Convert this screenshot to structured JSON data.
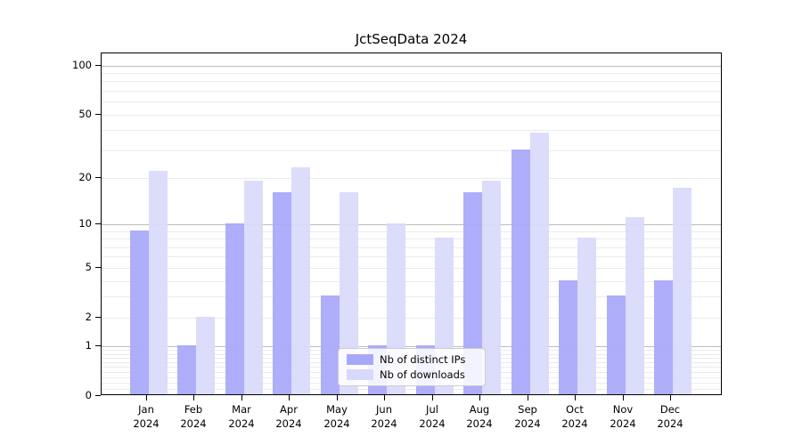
{
  "title": "JctSeqData 2024",
  "colors": {
    "bar_distinct_ips": "#a8a8fa",
    "bar_downloads": "#d9d9fb",
    "grid_major": "#bdbdbd",
    "grid_minor": "#ebebeb",
    "axis": "#000000"
  },
  "legend": {
    "items": [
      {
        "label": "Nb of distinct IPs",
        "color": "#a8a8fa"
      },
      {
        "label": "Nb of downloads",
        "color": "#d9d9fb"
      }
    ]
  },
  "chart_data": {
    "type": "bar",
    "title": "JctSeqData 2024",
    "scale": "log10(value+1)",
    "months": [
      "Jan",
      "Feb",
      "Mar",
      "Apr",
      "May",
      "Jun",
      "Jul",
      "Aug",
      "Sep",
      "Oct",
      "Nov",
      "Dec"
    ],
    "year": "2024",
    "series": [
      {
        "name": "Nb of distinct IPs",
        "color": "#a8a8fa",
        "values": [
          9,
          1,
          10,
          16,
          3,
          1,
          1,
          16,
          30,
          4,
          3,
          4
        ]
      },
      {
        "name": "Nb of downloads",
        "color": "#d9d9fb",
        "values": [
          22,
          2,
          19,
          23,
          16,
          10,
          8,
          19,
          38,
          8,
          11,
          17
        ]
      }
    ],
    "y_tick_values": [
      100,
      50,
      20,
      10,
      5,
      2,
      1,
      0
    ],
    "y_minor_gridlines": [
      0.1,
      0.2,
      0.3,
      0.4,
      0.5,
      0.6,
      0.7,
      0.8,
      0.9,
      2,
      3,
      4,
      5,
      6,
      7,
      8,
      9,
      20,
      30,
      40,
      50,
      60,
      70,
      80,
      90
    ],
    "y_major_gridlines": [
      1,
      10,
      100
    ],
    "ylim": [
      0,
      117
    ],
    "grid": true,
    "legend_position": "inside-bottom-center"
  }
}
